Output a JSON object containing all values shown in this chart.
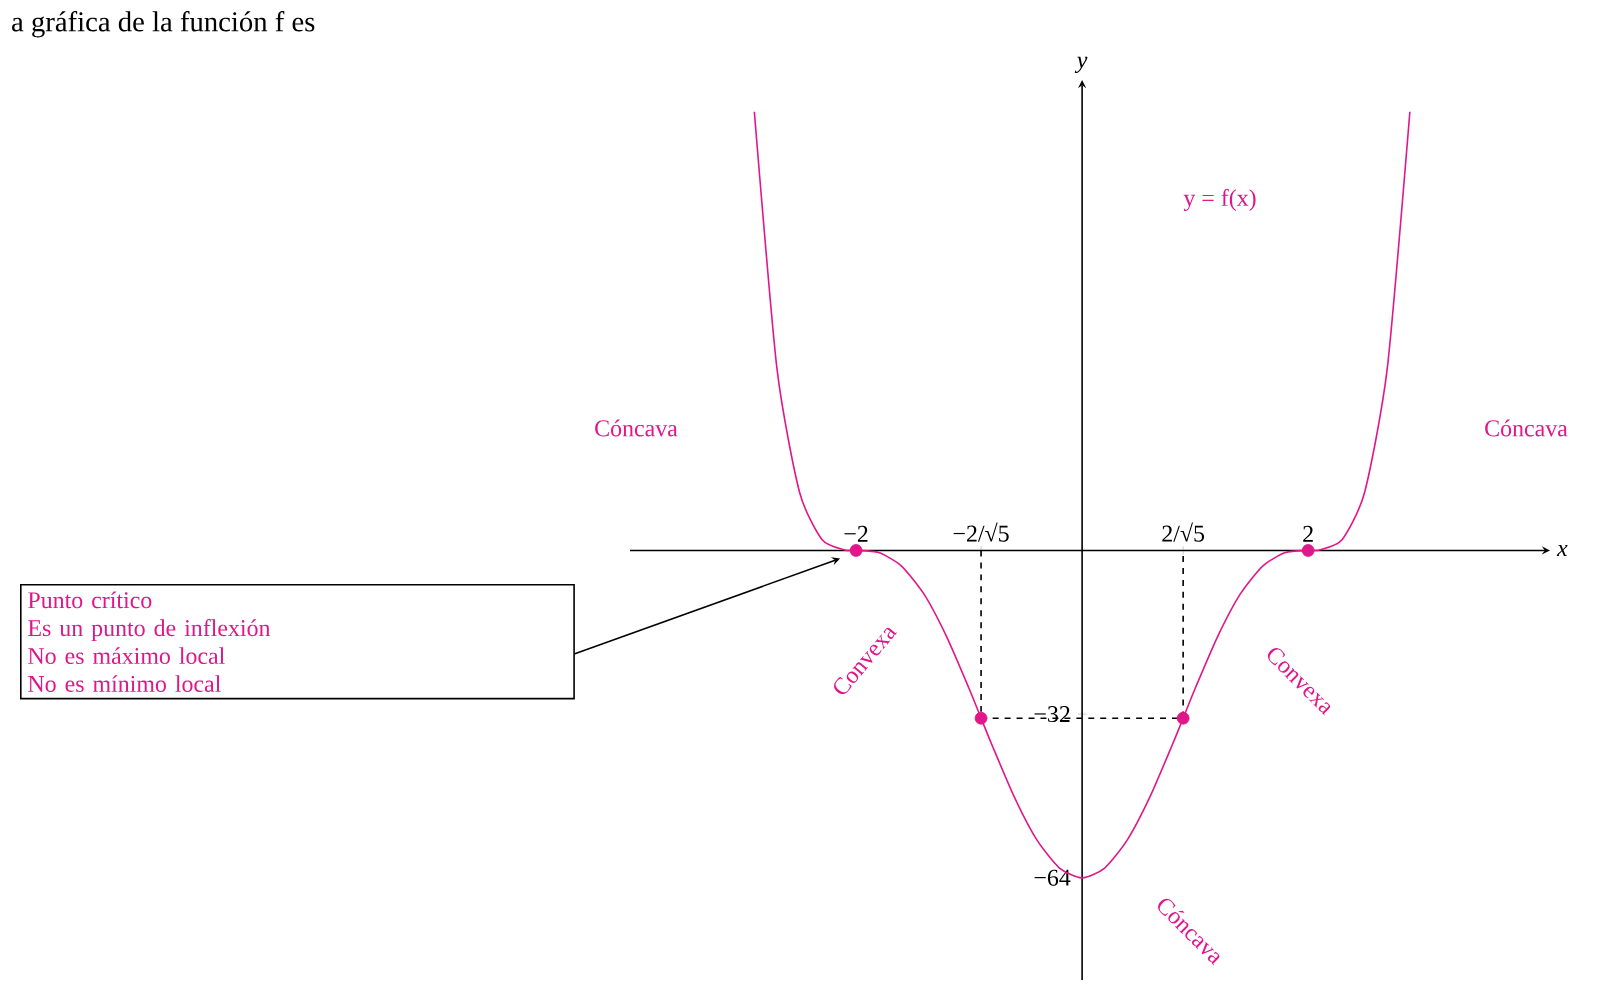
{
  "chart_data": {
    "type": "line",
    "title": "a gráfica de la función f es",
    "xlabel": "x",
    "ylabel": "y",
    "xlim": [
      -4,
      4.14
    ],
    "ylim": [
      -84,
      92
    ],
    "xticks": [
      {
        "value": -2,
        "label": "−2"
      },
      {
        "value": -0.894,
        "label": "−2/√5"
      },
      {
        "value": 0.894,
        "label": "2/√5"
      },
      {
        "value": 2,
        "label": "2"
      }
    ],
    "yticks": [
      {
        "value": -32,
        "label": "−32"
      },
      {
        "value": -64,
        "label": "−64"
      }
    ],
    "series": [
      {
        "color": "#e0168a",
        "x": [
          -2.9,
          -2.7,
          -2.5,
          -2.3,
          -2.1,
          -2,
          -1.8,
          -1.6,
          -1.4,
          -1.2,
          -1,
          -0.894,
          -0.8,
          -0.6,
          -0.4,
          -0.2,
          0,
          0.2,
          0.4,
          0.6,
          0.8,
          0.894,
          1,
          1.2,
          1.4,
          1.6,
          1.8,
          2,
          2.1,
          2.3,
          2.5,
          2.7,
          2.9
        ],
        "values": [
          85.8,
          35.6,
          11.4,
          2.1,
          0.1,
          0,
          -0.4,
          -3,
          -8.5,
          -16.8,
          -27,
          -32.8,
          -37.9,
          -48.2,
          -56.6,
          -62.1,
          -64,
          -62.1,
          -56.6,
          -48.2,
          -37.9,
          -32.8,
          -27,
          -16.8,
          -8.5,
          -3,
          -0.4,
          0,
          0.1,
          2.1,
          11.4,
          35.6,
          85.8
        ]
      },
      {
        "type": "scatter",
        "marker": "circle",
        "color": "#e0168a",
        "x": [
          -2,
          -0.894,
          0.894,
          2
        ],
        "values": [
          0,
          -32.8,
          -32.8,
          0
        ]
      },
      {
        "type": "line",
        "line_style": "dashed",
        "color": "#000000",
        "x": [
          -0.894,
          -0.894,
          0.894,
          0.894
        ],
        "values": [
          0,
          -32.8,
          -32.8,
          0
        ]
      }
    ],
    "annotations": [
      "y = f(x)",
      "Cóncava",
      "Cóncava",
      "Convexa",
      "Convexa",
      "Cóncava",
      "Punto crítico",
      "Es un punto de inflexión",
      "No es máximo local",
      "No es mínimo local"
    ]
  }
}
